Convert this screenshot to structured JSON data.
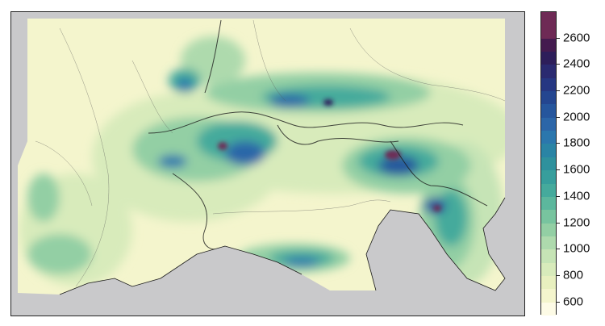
{
  "chart_data": {
    "type": "heatmap",
    "colorbar": {
      "ticks": [
        600,
        800,
        1000,
        1200,
        1400,
        1600,
        1800,
        2000,
        2200,
        2400,
        2600
      ],
      "bins": [
        {
          "from": 500,
          "to": 600,
          "color": "#fdfbe6"
        },
        {
          "from": 600,
          "to": 700,
          "color": "#f4f5cd"
        },
        {
          "from": 700,
          "to": 800,
          "color": "#e8f0bf"
        },
        {
          "from": 800,
          "to": 900,
          "color": "#d8ebbb"
        },
        {
          "from": 900,
          "to": 1000,
          "color": "#c6e4b6"
        },
        {
          "from": 1000,
          "to": 1100,
          "color": "#aedaad"
        },
        {
          "from": 1100,
          "to": 1200,
          "color": "#93cfa4"
        },
        {
          "from": 1200,
          "to": 1300,
          "color": "#78c49f"
        },
        {
          "from": 1300,
          "to": 1400,
          "color": "#5cb79d"
        },
        {
          "from": 1400,
          "to": 1500,
          "color": "#45aa9c"
        },
        {
          "from": 1500,
          "to": 1600,
          "color": "#379e9c"
        },
        {
          "from": 1600,
          "to": 1700,
          "color": "#2f919d"
        },
        {
          "from": 1700,
          "to": 1800,
          "color": "#2a84a5"
        },
        {
          "from": 1800,
          "to": 1900,
          "color": "#2b77ad"
        },
        {
          "from": 1900,
          "to": 2000,
          "color": "#2c66a8"
        },
        {
          "from": 2000,
          "to": 2100,
          "color": "#26569d"
        },
        {
          "from": 2100,
          "to": 2200,
          "color": "#244690"
        },
        {
          "from": 2200,
          "to": 2300,
          "color": "#263782"
        },
        {
          "from": 2300,
          "to": 2400,
          "color": "#2a2a70"
        },
        {
          "from": 2400,
          "to": 2500,
          "color": "#2d1e5a"
        },
        {
          "from": 2500,
          "to": 2600,
          "color": "#441b4f"
        },
        {
          "from": 2600,
          "to": 2800,
          "color": "#6e2a55"
        }
      ],
      "range": [
        500,
        2800
      ]
    },
    "background_color": "#c9c9cb",
    "land_base_color": "#f4f5cd"
  }
}
